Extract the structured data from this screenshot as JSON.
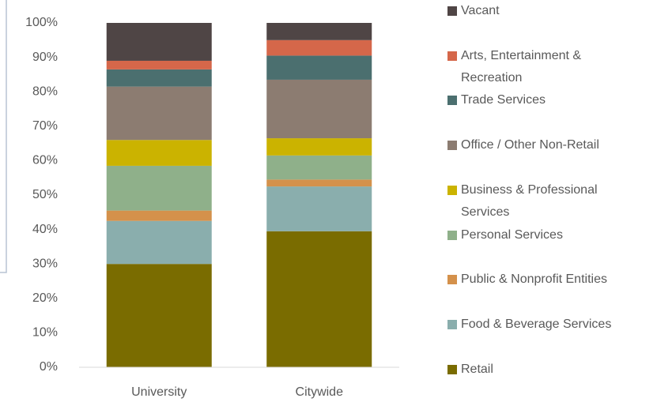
{
  "chart_data": {
    "type": "stacked_bar",
    "categories": [
      "University",
      "Citywide"
    ],
    "series": [
      {
        "name": "Retail",
        "color": "#7a6c00",
        "values": [
          30,
          39.5
        ]
      },
      {
        "name": "Food & Beverage Services",
        "color": "#8aaead",
        "values": [
          12.5,
          13
        ]
      },
      {
        "name": "Public & Nonprofit Entities",
        "color": "#d4914b",
        "values": [
          3,
          2
        ]
      },
      {
        "name": "Personal Services",
        "color": "#8fb08a",
        "values": [
          13,
          7
        ]
      },
      {
        "name": "Business & Professional Services",
        "color": "#cbb300",
        "values": [
          7.5,
          5
        ]
      },
      {
        "name": "Office / Other Non-Retail",
        "color": "#8c7c71",
        "values": [
          15.5,
          17
        ]
      },
      {
        "name": "Trade Services",
        "color": "#4b6f6f",
        "values": [
          5,
          7
        ]
      },
      {
        "name": "Arts, Entertainment & Recreation",
        "color": "#d5674a",
        "values": [
          2.5,
          4.5
        ]
      },
      {
        "name": "Vacant",
        "color": "#4f4545",
        "values": [
          11,
          5
        ]
      }
    ],
    "ylim": [
      0,
      100
    ],
    "yticks": [
      {
        "value": 0,
        "label": "0%"
      },
      {
        "value": 10,
        "label": "10%"
      },
      {
        "value": 20,
        "label": "20%"
      },
      {
        "value": 30,
        "label": "30%"
      },
      {
        "value": 40,
        "label": "40%"
      },
      {
        "value": 50,
        "label": "50%"
      },
      {
        "value": 60,
        "label": "60%"
      },
      {
        "value": 70,
        "label": "70%"
      },
      {
        "value": 80,
        "label": "80%"
      },
      {
        "value": 90,
        "label": "90%"
      },
      {
        "value": 100,
        "label": "100%"
      }
    ],
    "legend": "right"
  }
}
